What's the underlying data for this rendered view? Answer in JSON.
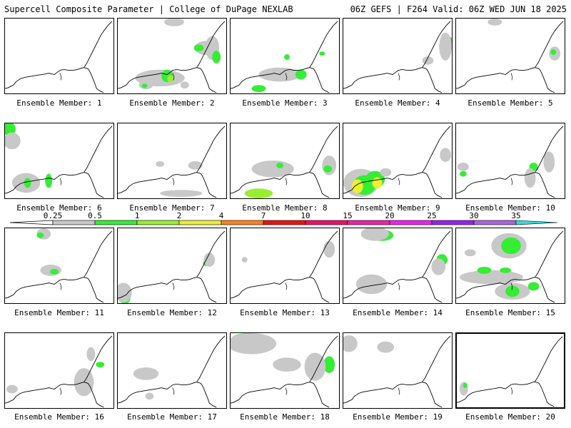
{
  "header": {
    "title": "Supercell Composite Parameter | College of DuPage NEXLAB",
    "run_info": "06Z GEFS | F264 Valid: 06Z WED JUN 18 2025"
  },
  "colors": {
    "light_gray": "#c8c8c8",
    "green": "#33ee33",
    "light_green": "#99ee33",
    "yellow": "#eeee33",
    "coastline": "#000000"
  },
  "legend": {
    "ticks": [
      "0.25",
      "0.5",
      "1",
      "2",
      "4",
      "7",
      "10",
      "15",
      "20",
      "25",
      "30",
      "35"
    ],
    "colors": [
      "#c8c8c8",
      "#33ee33",
      "#99ee33",
      "#eeee33",
      "#ff8020",
      "#ee1111",
      "#ee1166",
      "#ee22aa",
      "#ee22ee",
      "#9922ee",
      "#aa66dd",
      "#33dddd"
    ]
  },
  "members": [
    {
      "label": "Ensemble Member: 1"
    },
    {
      "label": "Ensemble Member: 2"
    },
    {
      "label": "Ensemble Member: 3"
    },
    {
      "label": "Ensemble Member: 4"
    },
    {
      "label": "Ensemble Member: 5"
    },
    {
      "label": "Ensemble Member: 6"
    },
    {
      "label": "Ensemble Member: 7"
    },
    {
      "label": "Ensemble Member: 8"
    },
    {
      "label": "Ensemble Member: 9"
    },
    {
      "label": "Ensemble Member: 10"
    },
    {
      "label": "Ensemble Member: 11"
    },
    {
      "label": "Ensemble Member: 12"
    },
    {
      "label": "Ensemble Member: 13"
    },
    {
      "label": "Ensemble Member: 14"
    },
    {
      "label": "Ensemble Member: 15"
    },
    {
      "label": "Ensemble Member: 16"
    },
    {
      "label": "Ensemble Member: 17"
    },
    {
      "label": "Ensemble Member: 18"
    },
    {
      "label": "Ensemble Member: 19"
    },
    {
      "label": "Ensemble Member: 20",
      "selected": true
    }
  ]
}
